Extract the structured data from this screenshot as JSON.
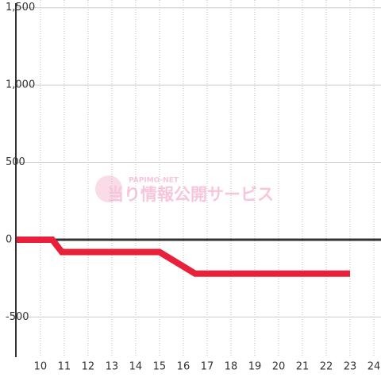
{
  "chart_data": {
    "type": "line",
    "x": [
      9,
      10.5,
      10.9,
      15,
      16.5,
      23
    ],
    "series": [
      {
        "color": "#e8203a",
        "values": [
          0,
          0,
          -80,
          -80,
          -220,
          -220
        ]
      }
    ],
    "xlim": [
      8.97,
      24.3
    ],
    "xticks": [
      10,
      11,
      12,
      13,
      14,
      15,
      16,
      17,
      18,
      19,
      20,
      21,
      22,
      23,
      24
    ],
    "ylim": [
      -760,
      1550
    ],
    "yticks": [
      {
        "value": 1500,
        "label": "1,500"
      },
      {
        "value": 1000,
        "label": "1,000"
      },
      500,
      0,
      -500
    ],
    "grid": true,
    "watermark": {
      "brand": "PAPIMO-NET",
      "text": "当り情報公開サービス"
    }
  }
}
